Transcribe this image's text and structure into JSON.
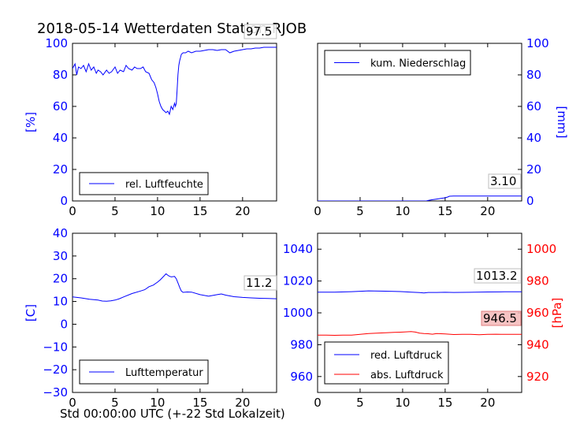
{
  "figure": {
    "title": "2018-05-14 Wetterdaten Station RJOB",
    "xcaption": "Std 00:00:00 UTC (+-22 Std Lokalzeit)"
  },
  "colors": {
    "blue": "#0000ff",
    "red": "#ff0000",
    "black": "#000000"
  },
  "chart_data": [
    {
      "id": "humidity",
      "type": "line",
      "xlim": [
        0,
        24
      ],
      "xticks": [
        0,
        5,
        10,
        15,
        20
      ],
      "ylim": [
        0,
        100
      ],
      "yticks": [
        0,
        20,
        40,
        60,
        80,
        100
      ],
      "ylabel": "[%]",
      "legend": "lower-left",
      "annotation": "97.5",
      "series": [
        {
          "name": "rel. Luftfeuchte",
          "color": "#0000ff",
          "x": [
            0,
            0.3,
            0.5,
            0.7,
            1,
            1.3,
            1.6,
            1.9,
            2.2,
            2.5,
            2.8,
            3,
            3.3,
            3.6,
            4,
            4.3,
            4.6,
            5,
            5.3,
            5.6,
            6,
            6.3,
            6.6,
            7,
            7.3,
            7.6,
            8,
            8.3,
            8.6,
            9,
            9.3,
            9.6,
            9.8,
            10,
            10.2,
            10.4,
            10.6,
            10.8,
            11,
            11.2,
            11.4,
            11.6,
            11.8,
            12,
            12.1,
            12.2,
            12.3,
            12.4,
            12.5,
            12.6,
            12.7,
            12.8,
            13,
            13.3,
            13.6,
            14,
            14.5,
            15,
            15.5,
            16,
            16.5,
            17,
            17.5,
            18,
            18.5,
            19,
            19.5,
            20,
            20.5,
            21,
            21.5,
            22,
            22.5,
            23,
            23.5,
            24
          ],
          "y": [
            84,
            87,
            80,
            85,
            84,
            86,
            82,
            87,
            83,
            85,
            81,
            83,
            82,
            80,
            83,
            81,
            82,
            85,
            81,
            83,
            82,
            86,
            84,
            83,
            85,
            84,
            84,
            85,
            82,
            81,
            77,
            75,
            72,
            68,
            63,
            60,
            58,
            57,
            56,
            57,
            55,
            60,
            58,
            62,
            60,
            62,
            70,
            80,
            86,
            89,
            91,
            93,
            94,
            94,
            95,
            94,
            95,
            95,
            95.5,
            96,
            96,
            95.5,
            96,
            96,
            94,
            95,
            95.5,
            96,
            96.5,
            96.5,
            97,
            97,
            97.5,
            97.5,
            97.5,
            97.5
          ]
        }
      ]
    },
    {
      "id": "precip",
      "type": "line",
      "xlim": [
        0,
        24
      ],
      "xticks": [
        0,
        5,
        10,
        15,
        20
      ],
      "ylim": [
        0,
        100
      ],
      "yticks": [
        0,
        20,
        40,
        60,
        80,
        100
      ],
      "ylabel": "[mm]",
      "legend": "top-left",
      "annotation": "3.10",
      "series": [
        {
          "name": "kum. Niederschlag",
          "color": "#0000ff",
          "x": [
            0,
            10,
            12.8,
            13,
            13.5,
            14,
            14.5,
            15,
            15.3,
            15.5,
            16,
            18,
            20,
            22,
            24
          ],
          "y": [
            0,
            0,
            0,
            0.3,
            0.8,
            1.2,
            1.6,
            2.0,
            2.5,
            3.0,
            3.1,
            3.1,
            3.1,
            3.1,
            3.1
          ]
        }
      ]
    },
    {
      "id": "temperature",
      "type": "line",
      "xlim": [
        0,
        24
      ],
      "xticks": [
        0,
        5,
        10,
        15,
        20
      ],
      "ylim": [
        -30,
        40
      ],
      "yticks": [
        -30,
        -20,
        -10,
        0,
        10,
        20,
        30,
        40
      ],
      "ylabel": "[C]",
      "legend": "lower-left",
      "annotation": "11.2",
      "series": [
        {
          "name": "Lufttemperatur",
          "color": "#0000ff",
          "x": [
            0,
            1,
            2,
            3,
            3.5,
            4,
            4.5,
            5,
            5.5,
            6,
            7,
            8,
            8.5,
            9,
            9.5,
            10,
            10.3,
            10.6,
            11,
            11.3,
            11.6,
            12,
            12.2,
            12.4,
            12.6,
            12.8,
            13,
            13.5,
            14,
            15,
            16,
            17,
            17.5,
            18,
            19,
            20,
            21,
            22,
            23,
            24
          ],
          "y": [
            12,
            11.6,
            11,
            10.6,
            10.2,
            10.1,
            10.3,
            10.6,
            11.2,
            12,
            13.5,
            14.6,
            15.2,
            16.5,
            17.2,
            18.5,
            19.5,
            20.6,
            22.2,
            21.3,
            20.8,
            21,
            20,
            18.2,
            16.2,
            14.6,
            14,
            14.2,
            14.1,
            13,
            12.3,
            13,
            13.3,
            12.8,
            12.1,
            11.8,
            11.6,
            11.4,
            11.3,
            11.2
          ]
        }
      ]
    },
    {
      "id": "pressure",
      "type": "line",
      "xlim": [
        0,
        24
      ],
      "xticks": [
        0,
        5,
        10,
        15,
        20
      ],
      "ylim": [
        950,
        1050
      ],
      "yticks": [
        960,
        980,
        1000,
        1020,
        1040
      ],
      "ylim_right": [
        910,
        1010
      ],
      "yticks_right": [
        920,
        940,
        960,
        980,
        1000
      ],
      "ylabel_right": "[hPa]",
      "legend": "lower-left",
      "annotations": [
        "1013.2",
        "946.5"
      ],
      "series": [
        {
          "name": "red. Luftdruck",
          "color": "#0000ff",
          "axis": "left",
          "x": [
            0,
            2,
            4,
            6,
            8,
            10,
            11,
            12,
            12.5,
            13,
            14,
            15,
            16,
            18,
            20,
            22,
            24
          ],
          "y": [
            1013,
            1013,
            1013.3,
            1013.8,
            1013.6,
            1013.3,
            1013,
            1012.7,
            1012.5,
            1012.8,
            1012.8,
            1012.9,
            1012.8,
            1012.9,
            1013.1,
            1013.2,
            1013.2
          ]
        },
        {
          "name": "abs. Luftdruck",
          "color": "#ff0000",
          "axis": "right",
          "x": [
            0,
            1,
            2,
            3,
            4,
            5,
            6,
            7,
            8,
            9,
            10,
            11,
            11.5,
            12,
            12.5,
            13,
            13.5,
            14,
            15,
            16,
            17,
            18,
            19,
            20,
            21,
            22,
            23,
            24
          ],
          "y": [
            946,
            946,
            945.9,
            946,
            946,
            946.5,
            947,
            947.3,
            947.5,
            947.7,
            947.9,
            948.2,
            947.9,
            947.3,
            947,
            946.9,
            946.6,
            947,
            946.8,
            946.4,
            946.5,
            946.5,
            946.3,
            946.5,
            946.6,
            946.5,
            946.5,
            946.5
          ]
        }
      ]
    }
  ]
}
